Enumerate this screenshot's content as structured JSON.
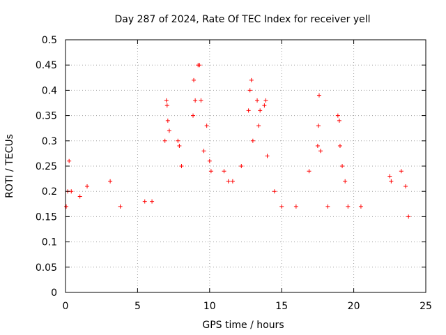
{
  "chart_data": {
    "type": "scatter",
    "title": "Day 287 of 2024, Rate Of TEC Index for receiver yell",
    "xlabel": "GPS time / hours",
    "ylabel": "ROTI / TECUs",
    "xlim": [
      0,
      25
    ],
    "ylim": [
      0,
      0.5
    ],
    "x_ticks": [
      "0",
      "5",
      "10",
      "15",
      "20",
      "25"
    ],
    "y_ticks": [
      "0",
      "0.05",
      "0.1",
      "0.15",
      "0.2",
      "0.25",
      "0.3",
      "0.35",
      "0.4",
      "0.45",
      "0.5"
    ],
    "grid": true,
    "marker": "+",
    "color": "#ff0000",
    "series": [
      {
        "points": [
          [
            0.05,
            0.17
          ],
          [
            0.15,
            0.2
          ],
          [
            0.25,
            0.26
          ],
          [
            0.4,
            0.2
          ],
          [
            1.0,
            0.19
          ],
          [
            1.5,
            0.21
          ],
          [
            3.1,
            0.22
          ],
          [
            3.8,
            0.17
          ],
          [
            5.5,
            0.18
          ],
          [
            6.0,
            0.18
          ],
          [
            6.9,
            0.3
          ],
          [
            7.0,
            0.38
          ],
          [
            7.05,
            0.37
          ],
          [
            7.1,
            0.34
          ],
          [
            7.2,
            0.32
          ],
          [
            7.8,
            0.3
          ],
          [
            7.9,
            0.29
          ],
          [
            8.05,
            0.25
          ],
          [
            8.85,
            0.35
          ],
          [
            8.9,
            0.42
          ],
          [
            9.0,
            0.38
          ],
          [
            9.2,
            0.45
          ],
          [
            9.3,
            0.45
          ],
          [
            9.4,
            0.38
          ],
          [
            9.6,
            0.28
          ],
          [
            9.8,
            0.33
          ],
          [
            10.0,
            0.26
          ],
          [
            10.1,
            0.24
          ],
          [
            11.0,
            0.24
          ],
          [
            11.3,
            0.22
          ],
          [
            11.6,
            0.22
          ],
          [
            12.2,
            0.25
          ],
          [
            12.7,
            0.36
          ],
          [
            12.8,
            0.4
          ],
          [
            12.9,
            0.42
          ],
          [
            13.0,
            0.3
          ],
          [
            13.3,
            0.38
          ],
          [
            13.4,
            0.33
          ],
          [
            13.5,
            0.36
          ],
          [
            13.8,
            0.37
          ],
          [
            13.9,
            0.38
          ],
          [
            14.0,
            0.27
          ],
          [
            14.5,
            0.2
          ],
          [
            15.0,
            0.17
          ],
          [
            16.0,
            0.17
          ],
          [
            16.9,
            0.24
          ],
          [
            17.5,
            0.29
          ],
          [
            17.55,
            0.33
          ],
          [
            17.6,
            0.39
          ],
          [
            17.7,
            0.28
          ],
          [
            18.2,
            0.17
          ],
          [
            18.9,
            0.35
          ],
          [
            19.0,
            0.34
          ],
          [
            19.05,
            0.29
          ],
          [
            19.2,
            0.25
          ],
          [
            19.4,
            0.22
          ],
          [
            19.6,
            0.17
          ],
          [
            20.5,
            0.17
          ],
          [
            22.5,
            0.23
          ],
          [
            22.6,
            0.22
          ],
          [
            23.3,
            0.24
          ],
          [
            23.6,
            0.21
          ],
          [
            23.8,
            0.15
          ]
        ]
      }
    ]
  }
}
